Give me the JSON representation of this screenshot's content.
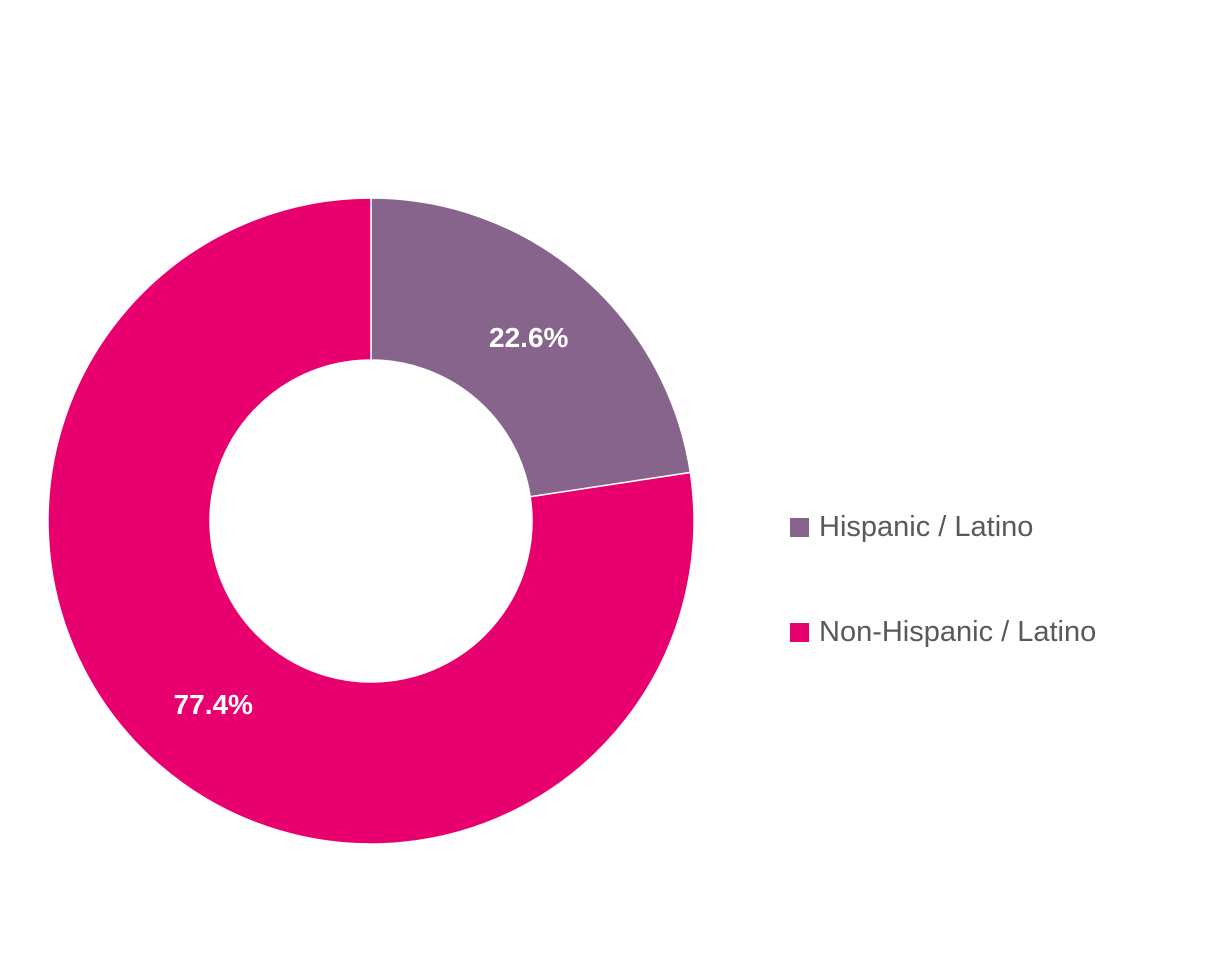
{
  "chart_data": {
    "type": "pie",
    "variant": "donut",
    "title": "",
    "slices": [
      {
        "label": "Hispanic / Latino",
        "value": 22.6,
        "display": "22.6%",
        "color": "#86648C"
      },
      {
        "label": "Non-Hispanic / Latino",
        "value": 77.4,
        "display": "77.4%",
        "color": "#E8006F"
      }
    ],
    "start_angle_deg": 0,
    "direction": "clockwise",
    "legend_position": "right"
  }
}
